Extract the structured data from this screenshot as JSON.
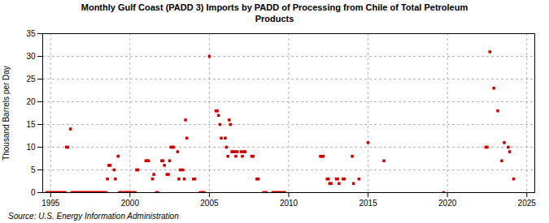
{
  "chart_data": {
    "type": "scatter",
    "title": "Monthly Gulf Coast (PADD 3) Imports by PADD of Processing from Chile of Total Petroleum\nProducts",
    "ylabel": "Thousand Barrels per Day",
    "source": "Source: U.S. Energy Information Administration",
    "color": "#cc0000",
    "marker": "square",
    "grid": true,
    "xlim": [
      1994.5,
      2025.5
    ],
    "xticks": [
      1995,
      2000,
      2005,
      2010,
      2015,
      2020,
      2025
    ],
    "ylim": [
      0,
      35
    ],
    "yticks": [
      0,
      5,
      10,
      15,
      20,
      25,
      30,
      35
    ],
    "x": [
      1994.75,
      1994.83,
      1994.92,
      1995.0,
      1995.08,
      1995.17,
      1995.25,
      1995.33,
      1995.42,
      1995.5,
      1995.58,
      1995.67,
      1995.75,
      1995.83,
      1995.92,
      1996.0,
      1996.08,
      1996.25,
      1996.33,
      1996.42,
      1996.5,
      1996.58,
      1996.67,
      1996.75,
      1996.83,
      1996.92,
      1997.0,
      1997.08,
      1997.17,
      1997.25,
      1997.33,
      1997.42,
      1997.5,
      1997.58,
      1997.67,
      1997.75,
      1997.83,
      1997.92,
      1998.0,
      1998.08,
      1998.17,
      1998.25,
      1998.33,
      1998.42,
      1998.5,
      1998.58,
      1998.67,
      1998.75,
      1999.0,
      1999.08,
      1999.25,
      1999.33,
      1999.42,
      1999.5,
      1999.58,
      1999.67,
      1999.75,
      1999.83,
      1999.92,
      2000.0,
      2000.08,
      2000.17,
      2000.25,
      2000.33,
      2000.42,
      2000.5,
      2001.0,
      2001.08,
      2001.17,
      2001.42,
      2001.5,
      2001.67,
      2001.75,
      2002.0,
      2002.08,
      2002.17,
      2002.33,
      2002.42,
      2002.5,
      2002.58,
      2002.67,
      2002.75,
      2003.0,
      2003.08,
      2003.17,
      2003.33,
      2003.42,
      2003.5,
      2003.58,
      2004.0,
      2004.08,
      2004.42,
      2004.5,
      2004.58,
      2004.67,
      2005.0,
      2005.42,
      2005.5,
      2005.58,
      2005.67,
      2005.75,
      2006.0,
      2006.08,
      2006.17,
      2006.25,
      2006.33,
      2006.42,
      2006.5,
      2006.58,
      2006.67,
      2006.75,
      2007.0,
      2007.08,
      2007.17,
      2007.25,
      2007.67,
      2007.75,
      2008.0,
      2008.08,
      2008.42,
      2008.5,
      2008.58,
      2009.0,
      2009.08,
      2009.17,
      2009.25,
      2009.33,
      2009.42,
      2009.5,
      2009.58,
      2009.67,
      2009.75,
      2012.0,
      2012.08,
      2012.17,
      2012.42,
      2012.5,
      2012.58,
      2012.67,
      2013.0,
      2013.08,
      2013.17,
      2013.42,
      2013.5,
      2014.0,
      2014.08,
      2014.42,
      2015.0,
      2016.0,
      2019.75,
      2022.42,
      2022.5,
      2022.67,
      2022.92,
      2023.17,
      2023.42,
      2023.58,
      2023.83,
      2023.92,
      2024.17
    ],
    "values": [
      0,
      0,
      0,
      0,
      0,
      0,
      0,
      0,
      0,
      0,
      0,
      0,
      0,
      0,
      0,
      10,
      10,
      14,
      0,
      0,
      0,
      0,
      0,
      0,
      0,
      0,
      0,
      0,
      0,
      0,
      0,
      0,
      0,
      0,
      0,
      0,
      0,
      0,
      0,
      0,
      0,
      0,
      0,
      0,
      0,
      3,
      6,
      6,
      5,
      3,
      8,
      0,
      0,
      0,
      0,
      0,
      0,
      0,
      0,
      0,
      0,
      0,
      0,
      0,
      5,
      5,
      7,
      7,
      7,
      3,
      4,
      0,
      0,
      7,
      7,
      6,
      4,
      4,
      7,
      10,
      10,
      10,
      9,
      3,
      5,
      5,
      3,
      16,
      12,
      3,
      3,
      0,
      0,
      0,
      0,
      30,
      18,
      18,
      17,
      15,
      12,
      12,
      10,
      8,
      16,
      15,
      9,
      9,
      9,
      8,
      9,
      9,
      8,
      9,
      9,
      8,
      8,
      3,
      3,
      0,
      0,
      0,
      0,
      0,
      0,
      0,
      0,
      0,
      0,
      0,
      0,
      0,
      8,
      8,
      8,
      3,
      3,
      2,
      2,
      3,
      3,
      2,
      3,
      3,
      8,
      2,
      3,
      11,
      7,
      0,
      10,
      10,
      31,
      23,
      18,
      7,
      11,
      10,
      9,
      3
    ]
  }
}
